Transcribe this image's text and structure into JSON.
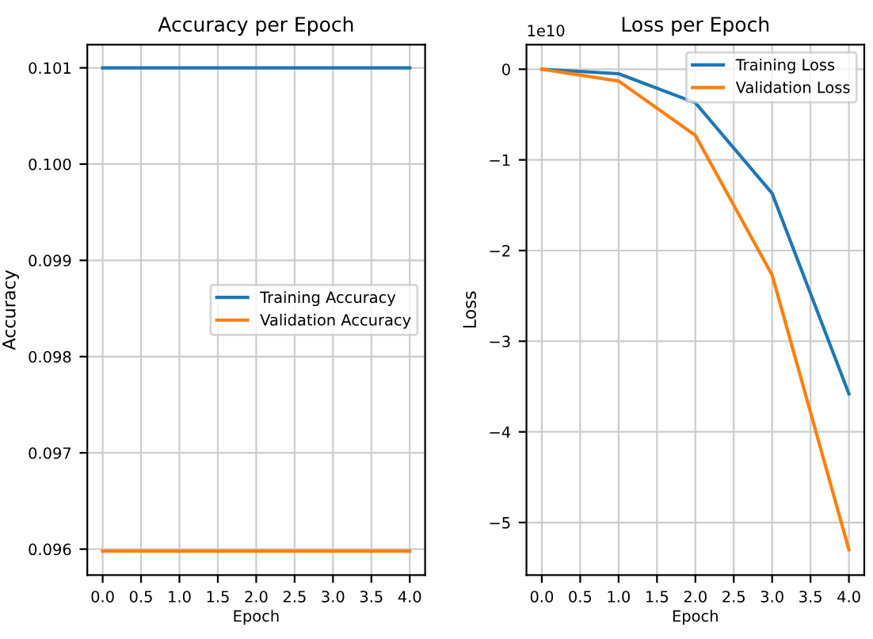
{
  "chart_data": [
    {
      "type": "line",
      "title": "Accuracy per Epoch",
      "xlabel": "Epoch",
      "ylabel": "Accuracy",
      "x": [
        0,
        1,
        2,
        3,
        4
      ],
      "series": [
        {
          "name": "Training Accuracy",
          "color": "#1f77b4",
          "values": [
            0.101,
            0.101,
            0.101,
            0.101,
            0.101
          ]
        },
        {
          "name": "Validation Accuracy",
          "color": "#ff7f0e",
          "values": [
            0.09598,
            0.09598,
            0.09598,
            0.09598,
            0.09598
          ]
        }
      ],
      "xlim": [
        -0.2,
        4.2
      ],
      "xticks": [
        {
          "value": 0,
          "label": "0.0"
        },
        0.5,
        {
          "value": 1,
          "label": "1.0"
        },
        1.5,
        {
          "value": 2,
          "label": "2.0"
        },
        2.5,
        {
          "value": 3,
          "label": "3.0"
        },
        3.5,
        {
          "value": 4,
          "label": "4.0"
        }
      ],
      "ylim": [
        0.09573,
        0.10124
      ],
      "yticks": [
        {
          "value": 0.096,
          "label": "0.096"
        },
        0.097,
        0.098,
        0.099,
        {
          "value": 0.1,
          "label": "0.100"
        },
        0.101
      ],
      "grid": true,
      "legend": "right",
      "marker": "none",
      "line_style": "solid"
    },
    {
      "type": "line",
      "title": "Loss per Epoch",
      "xlabel": "Epoch",
      "ylabel": "Loss",
      "x": [
        0,
        1,
        2,
        3,
        4
      ],
      "series": [
        {
          "name": "Training Loss",
          "color": "#1f77b4",
          "values": [
            0,
            -0.05,
            -0.37,
            -1.37,
            -3.58
          ]
        },
        {
          "name": "Validation Loss",
          "color": "#ff7f0e",
          "values": [
            0,
            -0.13,
            -0.73,
            -2.27,
            -5.3
          ]
        }
      ],
      "xlim": [
        -0.2,
        4.2
      ],
      "xticks": [
        {
          "value": 0,
          "label": "0.0"
        },
        0.5,
        {
          "value": 1,
          "label": "1.0"
        },
        1.5,
        {
          "value": 2,
          "label": "2.0"
        },
        2.5,
        {
          "value": 3,
          "label": "3.0"
        },
        3.5,
        {
          "value": 4,
          "label": "4.0"
        }
      ],
      "ylim": [
        -5.58,
        0.27
      ],
      "yticks": [
        {
          "value": -5,
          "label": "−5"
        },
        {
          "value": -4,
          "label": "−4"
        },
        {
          "value": -3,
          "label": "−3"
        },
        {
          "value": -2,
          "label": "−2"
        },
        {
          "value": -1,
          "label": "−1"
        },
        0
      ],
      "annotations": [
        "1e10"
      ],
      "grid": true,
      "legend": "top right",
      "marker": "none",
      "line_style": "solid"
    }
  ]
}
